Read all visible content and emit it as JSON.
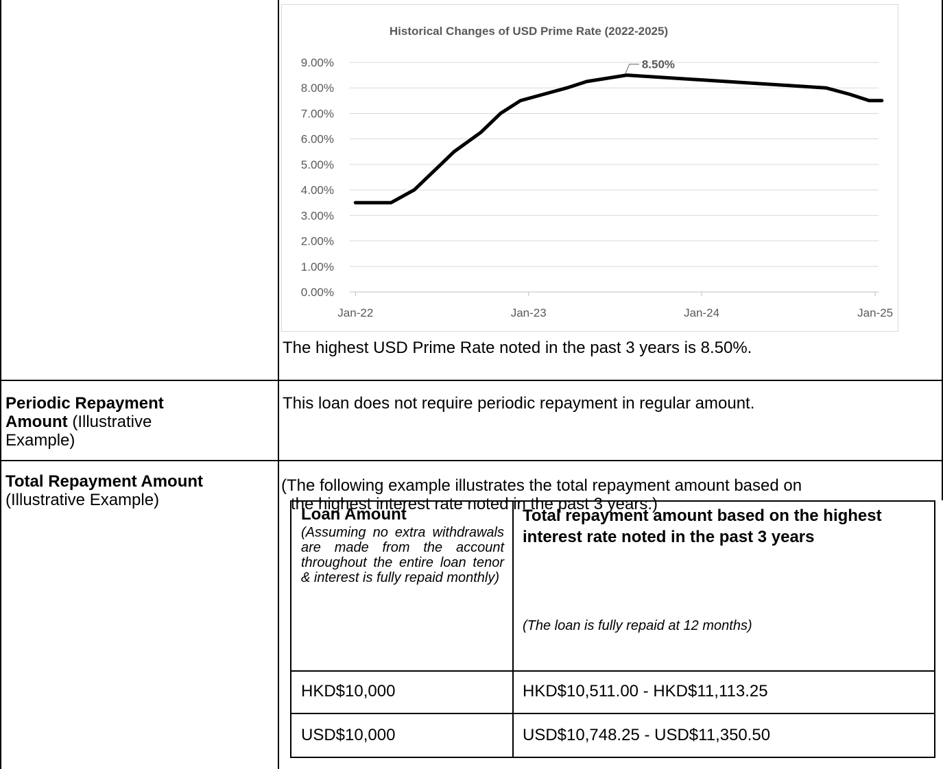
{
  "chart_data": {
    "type": "line",
    "title": "Historical Changes of USD Prime Rate (2022-2025)",
    "xlabel": "",
    "ylabel": "",
    "ylim": [
      0,
      9
    ],
    "y_ticks": [
      "0.00%",
      "1.00%",
      "2.00%",
      "3.00%",
      "4.00%",
      "5.00%",
      "6.00%",
      "7.00%",
      "8.00%",
      "9.00%"
    ],
    "x_ticks": [
      "Jan-22",
      "Jan-23",
      "Jan-24",
      "Jan-25"
    ],
    "grid": true,
    "series": [
      {
        "values": [
          [
            "2022-01-01",
            3.5
          ],
          [
            "2022-03-17",
            3.5
          ],
          [
            "2022-05-05",
            4.0
          ],
          [
            "2022-06-16",
            4.75
          ],
          [
            "2022-07-28",
            5.5
          ],
          [
            "2022-09-22",
            6.25
          ],
          [
            "2022-11-03",
            7.0
          ],
          [
            "2022-12-15",
            7.5
          ],
          [
            "2023-02-02",
            7.75
          ],
          [
            "2023-03-23",
            8.0
          ],
          [
            "2023-05-04",
            8.25
          ],
          [
            "2023-07-27",
            8.5
          ],
          [
            "2024-09-19",
            8.0
          ],
          [
            "2024-11-08",
            7.75
          ],
          [
            "2024-12-19",
            7.5
          ],
          [
            "2025-01-15",
            7.5
          ]
        ]
      }
    ],
    "annotation": {
      "date": "2023-07-27",
      "value": 8.5,
      "label": "8.50%"
    }
  },
  "chart_note": "The highest USD Prime Rate noted in the past 3 years is 8.50%.",
  "rows": {
    "periodic": {
      "label_bold_1": "Periodic Repayment",
      "label_bold_2": "Amount",
      "label_rest_2": " (Illustrative",
      "label_line_3": "Example)",
      "content": "This loan does not require periodic repayment in regular amount."
    },
    "total": {
      "label_bold": "Total Repayment Amount",
      "label_rest": "(Illustrative Example)",
      "intro_line_1": "(The following example illustrates the total repayment amount based on",
      "intro_line_2": "the highest interest rate noted in the past 3 years.)"
    }
  },
  "inner_table": {
    "header_left_title": "Loan Amount",
    "header_left_note": "(Assuming no extra withdrawals are made from the account throughout the entire loan tenor & interest is fully repaid monthly)",
    "header_right_title": "Total repayment amount based on the highest interest rate noted in the past 3 years",
    "header_right_note": "(The loan is fully repaid at 12 months)",
    "rows": [
      {
        "loan": "HKD$10,000",
        "total": "HKD$10,511.00 - HKD$11,113.25"
      },
      {
        "loan": "USD$10,000",
        "total": "USD$10,748.25 - USD$11,350.50"
      }
    ]
  }
}
